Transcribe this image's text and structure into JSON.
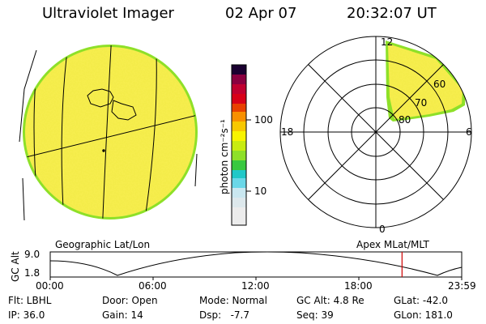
{
  "header": {
    "title": "Ultraviolet Imager",
    "date": "02 Apr 07",
    "time": "20:32:07 UT"
  },
  "colorbar": {
    "unit_label": "photon cm⁻²s⁻¹",
    "tick_100": "100",
    "tick_10": "10",
    "colors": [
      "#e8e8e8",
      "#c9e7f0",
      "#6ad7e8",
      "#20c8c8",
      "#38c840",
      "#8ee028",
      "#c8ec10",
      "#f8f400",
      "#f8c800",
      "#f89000",
      "#e84000",
      "#d80018",
      "#c00030",
      "#8a0040",
      "#4a0040",
      "#1a0030"
    ]
  },
  "geo_label": "Geographic Lat/Lon",
  "polar": {
    "label": "Apex MLat/MLT",
    "mlt_top": "12",
    "mlt_left": "18",
    "mlt_right": "6",
    "mlt_bottom": "0",
    "lat_60": "60",
    "lat_70": "70",
    "lat_80": "80"
  },
  "altitude_plot": {
    "axis_label": "GC Alt",
    "y_max": "9.0",
    "y_min": "1.8",
    "t0": "00:00",
    "t1": "06:00",
    "t2": "12:00",
    "t3": "18:00",
    "t4": "23:59",
    "marker_fraction": 0.855
  },
  "info": {
    "filter": "Flt: LBHL",
    "ip": "IP: 36.0",
    "door": "Door: Open",
    "gain": "Gain: 14",
    "mode": "Mode: Normal",
    "dsp": "Dsp:   -7.7",
    "gc_alt": "GC Alt: 4.8 Re",
    "seq": "Seq: 39",
    "glat": "GLat: -42.0",
    "glon": "GLon: 181.0"
  },
  "colors": {
    "disk_fill": "#f4ec4a",
    "disk_rim": "#8ee028",
    "marker": "#d00000"
  }
}
